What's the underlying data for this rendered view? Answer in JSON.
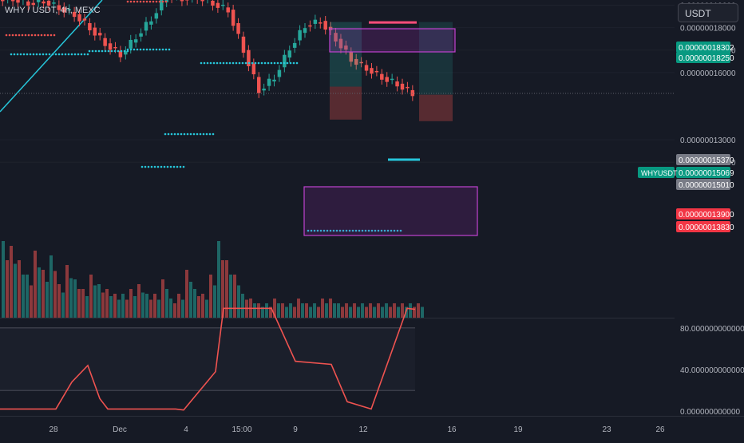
{
  "header": {
    "symbol_title": "WHY / USDT, 4h, MEXC",
    "currency_button": "USDT"
  },
  "price_axis_ticks": [
    "0.00000019000",
    "0.00000018000",
    "0.00000017000",
    "0.00000016000",
    "0.00000013000",
    "0.00000012000"
  ],
  "price_badges": [
    {
      "label": "0.00000018302",
      "color": "#089981"
    },
    {
      "label": "0.00000018250",
      "color": "#089981"
    },
    {
      "label": "0.00000015370",
      "color": "#787b86"
    },
    {
      "label": "0.00000015069",
      "color": "#089981"
    },
    {
      "label": "0.00000015010",
      "color": "#787b86"
    },
    {
      "label": "0.00000013900",
      "color": "#f23645"
    },
    {
      "label": "0.00000013830",
      "color": "#f23645"
    }
  ],
  "symbol_badge": "WHYUSDT",
  "oscillator_axis_ticks": [
    "80.000000000000",
    "40.000000000000",
    "0.000000000000"
  ],
  "time_axis_ticks": [
    "28",
    "Dec",
    "4",
    "15:00",
    "9",
    "12",
    "16",
    "19",
    "23",
    "26"
  ],
  "colors": {
    "up": "#26a69a",
    "down": "#ef5350",
    "background": "#161a25",
    "text": "#b2b5be",
    "accent": "#2962ff"
  },
  "chart_data": [
    {
      "type": "candlestick",
      "title": "WHY / USDT, 4h, MEXC",
      "y_axis_ticks": [
        1.9e-07,
        1.8e-07,
        1.7e-07,
        1.6e-07,
        1.3e-07,
        1.2e-07
      ],
      "ylim": [
        1.12e-07,
        1.97e-07
      ],
      "x_axis_ticks": [
        "28",
        "Dec",
        "4",
        "15:00",
        "9",
        "12",
        "16",
        "19",
        "23",
        "26"
      ],
      "last_price": 1.5069e-07,
      "price_markers": [
        1.8302e-07,
        1.825e-07,
        1.537e-07,
        1.501e-07,
        1.39e-07,
        1.383e-07
      ],
      "close_prices": [
        1.93e-07,
        1.91e-07,
        1.92e-07,
        1.89e-07,
        1.86e-07,
        1.8e-07,
        1.73e-07,
        1.68e-07,
        1.76e-07,
        1.84e-07,
        1.95e-07,
        1.93e-07,
        1.94e-07,
        1.91e-07,
        1.88e-07,
        1.7e-07,
        1.52e-07,
        1.58e-07,
        1.71e-07,
        1.81e-07,
        1.83e-07,
        1.75e-07,
        1.66e-07,
        1.62e-07,
        1.58e-07,
        1.55e-07,
        1.507e-07
      ],
      "annotations": {
        "long_position": {
          "entry": 1.537e-07,
          "target": 1.825e-07,
          "stop": 1.39e-07
        },
        "short_position": {
          "entry": 1.501e-07,
          "target": 1.825e-07,
          "stop": 1.383e-07
        }
      }
    },
    {
      "type": "bar",
      "title": "",
      "values": [
        1.6,
        1.5,
        1.2,
        0.9,
        1.4,
        1.0,
        1.3,
        0.7,
        1.1,
        0.8,
        0.6,
        0.9,
        0.7,
        0.6,
        0.5,
        0.5,
        0.6,
        0.7,
        0.5,
        0.5,
        0.8,
        0.4,
        0.5,
        1.0,
        0.6,
        0.5,
        0.9,
        1.6,
        1.2,
        0.9,
        0.5,
        0.4,
        0.3,
        0.3,
        0.4,
        0.3,
        0.3,
        0.4,
        0.3,
        0.3,
        0.4,
        0.4,
        0.3,
        0.3,
        0.3,
        0.3,
        0.3,
        0.3,
        0.3,
        0.3,
        0.3,
        0.3,
        0.3
      ],
      "note_unit": "relative volume"
    },
    {
      "type": "line",
      "title": "",
      "ylim": [
        0,
        100
      ],
      "y_axis_ticks": [
        80,
        40,
        0
      ],
      "levels": [
        80,
        20
      ],
      "x": [
        0,
        10,
        14,
        18,
        22,
        25,
        27,
        31,
        44,
        46,
        54,
        56,
        58,
        60,
        68,
        74,
        83,
        87,
        93,
        102,
        104
      ],
      "y": [
        2,
        2,
        2,
        28,
        44,
        12,
        2,
        2,
        2,
        1,
        38,
        99,
        99,
        99,
        99,
        48,
        45,
        9,
        2,
        99,
        98
      ]
    }
  ]
}
